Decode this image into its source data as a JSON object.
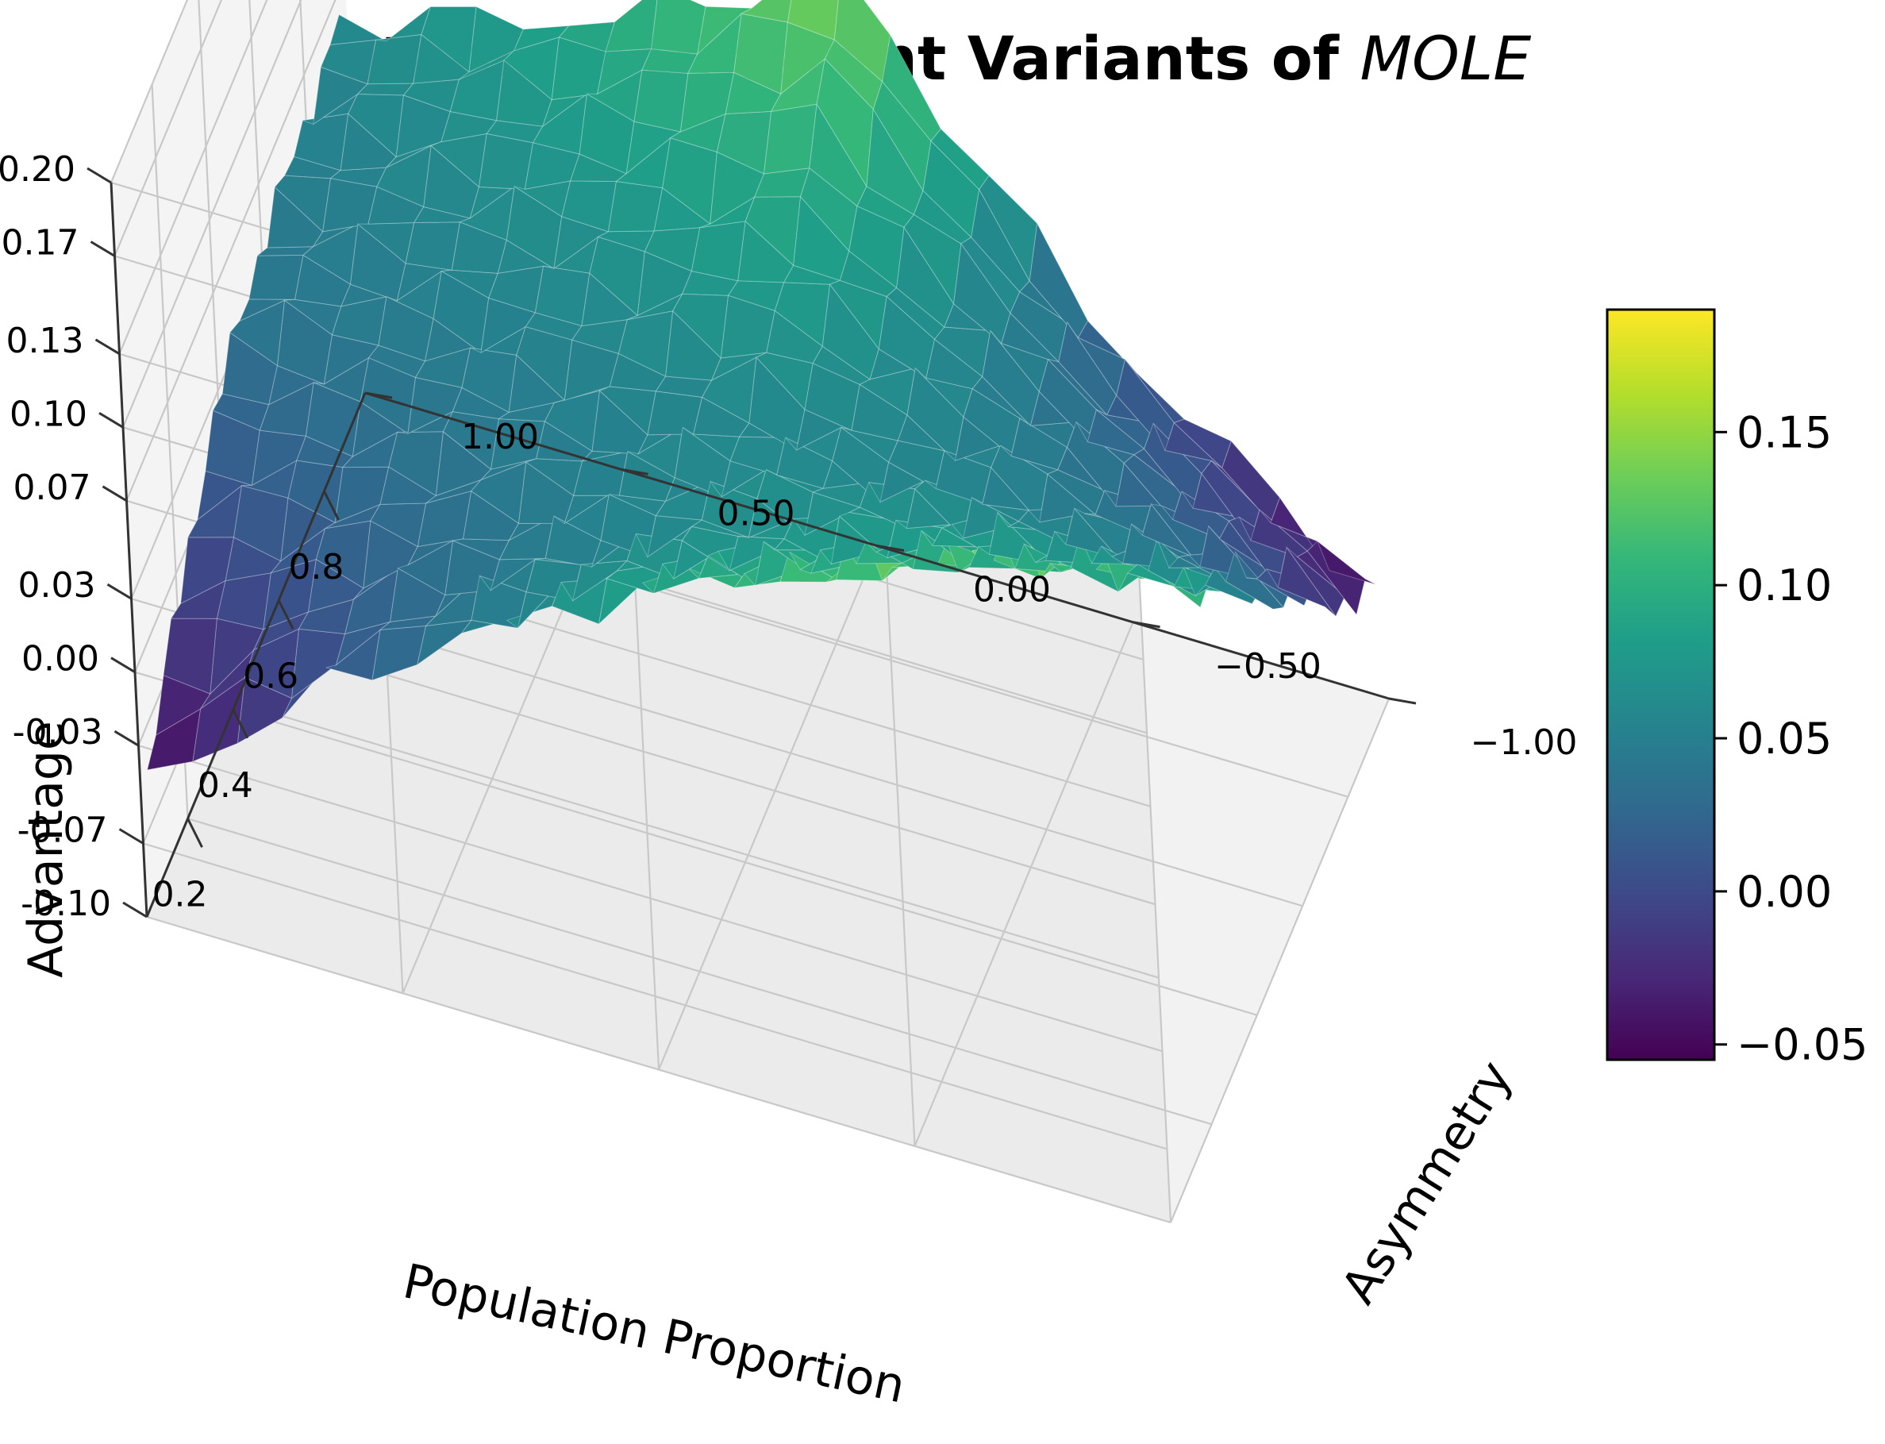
{
  "chart_data": {
    "type": "surface3d",
    "title": "Advantage of Different Variants of",
    "title_emphasis": "MOLE",
    "xlabel": "Population Proportion",
    "ylabel": "Asymmetry",
    "zlabel": "Advantage",
    "x_ticks": [
      "0.2",
      "0.4",
      "0.6",
      "0.8"
    ],
    "y_ticks": [
      "−1.00",
      "−0.50",
      "0.00",
      "0.50",
      "1.00"
    ],
    "z_ticks": [
      "-0.10",
      "-0.07",
      "-0.03",
      "0.00",
      "0.03",
      "0.07",
      "0.10",
      "0.13",
      "0.17",
      "0.20"
    ],
    "colorbar_ticks": [
      "−0.05",
      "0.00",
      "0.05",
      "0.10",
      "0.15"
    ],
    "colorbar_values": [
      -0.05,
      0.0,
      0.05,
      0.1,
      0.15
    ],
    "colorbar_range": [
      -0.055,
      0.19
    ],
    "colormap": "viridis",
    "xlim": [
      0.02,
      0.98
    ],
    "ylim": [
      -1.0,
      1.0
    ],
    "zlim": [
      -0.1,
      0.2
    ],
    "grid": true,
    "surface_description": "Advantage peaks (~0.19) at low population proportion and asymmetry near -1, falls to ~-0.05 at low proportion and asymmetry +1, with a secondary ridge (~0.15) at high proportion near asymmetry 0 and a minimum (~-0.05) at high proportion and asymmetry -1.",
    "surface_sample": {
      "x": [
        0.05,
        0.25,
        0.5,
        0.75,
        0.95
      ],
      "y": [
        -1.0,
        -0.5,
        0.0,
        0.5,
        1.0
      ],
      "z": [
        [
          0.185,
          0.13,
          0.09,
          0.03,
          -0.05
        ],
        [
          0.11,
          0.09,
          0.065,
          0.035,
          0.0
        ],
        [
          0.05,
          0.055,
          0.06,
          0.05,
          0.04
        ],
        [
          -0.01,
          0.04,
          0.09,
          0.07,
          0.05
        ],
        [
          -0.05,
          0.02,
          0.14,
          0.09,
          0.06
        ]
      ]
    }
  }
}
